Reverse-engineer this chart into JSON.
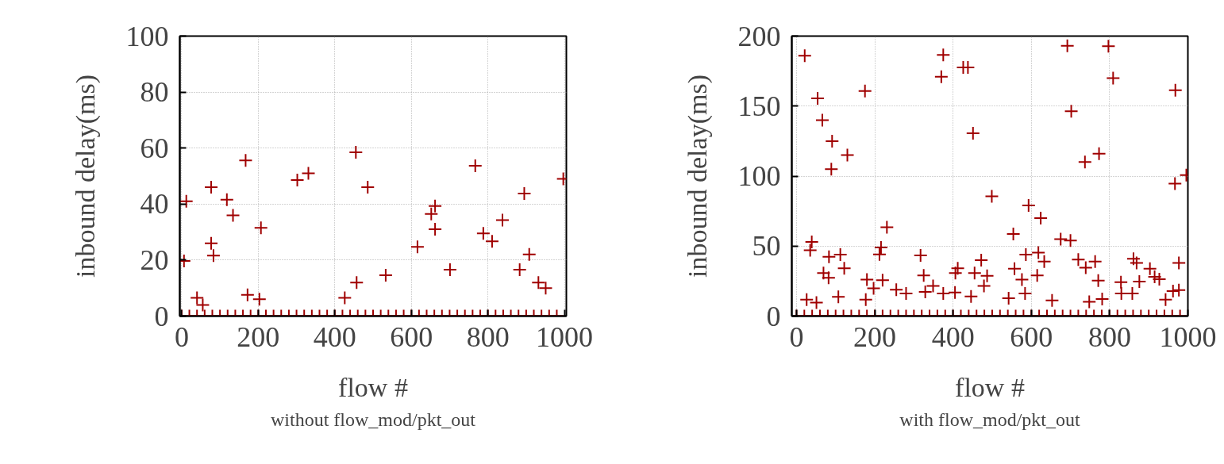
{
  "chart_data": [
    {
      "type": "scatter",
      "xlabel": "flow #",
      "ylabel": "inbound delay(ms)",
      "annotations": [
        "without flow_mod/pkt_out"
      ],
      "xlim": [
        -5,
        1005
      ],
      "ylim": [
        0,
        100
      ],
      "xticks": [
        0,
        200,
        400,
        600,
        800,
        1000
      ],
      "yticks": [
        0,
        20,
        40,
        60,
        80,
        100
      ],
      "grid": true,
      "marker": "cross",
      "series": [
        {
          "color": "#a00000",
          "x": [
            0,
            20,
            40,
            60,
            80,
            100,
            120,
            140,
            160,
            180,
            200,
            220,
            240,
            260,
            280,
            300,
            320,
            340,
            360,
            380,
            400,
            420,
            440,
            460,
            480,
            500,
            520,
            540,
            560,
            580,
            600,
            620,
            640,
            660,
            680,
            700,
            720,
            740,
            760,
            780,
            800,
            820,
            840,
            860,
            880,
            900,
            920,
            940,
            960,
            980,
            6,
            12,
            40,
            55,
            77,
            77,
            83,
            118,
            134,
            167,
            172,
            203,
            207,
            302,
            331,
            426,
            455,
            457,
            486,
            533,
            616,
            652,
            662,
            662,
            701,
            767,
            788,
            811,
            838,
            883,
            895,
            908,
            932,
            951,
            997
          ],
          "values": [
            0,
            0,
            0,
            0,
            0,
            0,
            0,
            0,
            0,
            0,
            0,
            0,
            0,
            0,
            0,
            0,
            0,
            0,
            0,
            0,
            0,
            0,
            0,
            0,
            0,
            0,
            0,
            0,
            0,
            0,
            0,
            0,
            0,
            0,
            0,
            0,
            0,
            0,
            0,
            0,
            0,
            0,
            0,
            0,
            0,
            0,
            0,
            0,
            0,
            0,
            19.7,
            41,
            6.5,
            4,
            46,
            26,
            21.6,
            41.6,
            36,
            55.6,
            7.6,
            6,
            31.5,
            48.6,
            51,
            6.5,
            58.5,
            12,
            46,
            14.6,
            24.7,
            36.5,
            39.3,
            31,
            16.6,
            53.7,
            29.5,
            26.7,
            34.3,
            16.6,
            43.8,
            22,
            12,
            10,
            49
          ]
        }
      ]
    },
    {
      "type": "scatter",
      "xlabel": "flow #",
      "ylabel": "inbound delay(ms)",
      "annotations": [
        "with flow_mod/pkt_out"
      ],
      "xlim": [
        -12,
        1000
      ],
      "ylim": [
        0,
        200
      ],
      "xticks": [
        0,
        200,
        400,
        600,
        800,
        1000
      ],
      "yticks": [
        0,
        50,
        100,
        150,
        200
      ],
      "grid": true,
      "marker": "cross",
      "series": [
        {
          "color": "#a00000",
          "x": [
            0,
            20,
            40,
            60,
            80,
            100,
            120,
            140,
            160,
            180,
            200,
            220,
            240,
            260,
            280,
            300,
            320,
            340,
            360,
            380,
            400,
            420,
            440,
            460,
            480,
            500,
            520,
            540,
            560,
            580,
            600,
            620,
            640,
            660,
            680,
            700,
            720,
            740,
            760,
            780,
            800,
            820,
            840,
            860,
            880,
            900,
            920,
            940,
            960,
            980,
            21,
            54,
            66,
            91,
            130,
            89,
            175,
            370,
            375,
            426,
            438,
            451,
            692,
            797,
            809,
            702,
            737,
            773,
            968,
            996,
            967,
            499,
            593,
            624,
            231,
            554,
            675,
            700,
            39,
            35,
            216,
            212,
            83,
            112,
            317,
            472,
            586,
            618,
            633,
            720,
            763,
            861,
            869,
            977,
            739,
            122,
            69,
            82,
            412,
            406,
            455,
            487,
            557,
            325,
            180,
            220,
            903,
            915,
            927,
            771,
            876,
            829,
            576,
            615,
            479,
            349,
            255,
            280,
            329,
            197,
            107,
            26,
            51,
            177,
            375,
            405,
            446,
            542,
            584,
            653,
            748,
            781,
            830,
            858,
            943,
            962,
            977
          ],
          "values": [
            0,
            0,
            0,
            0,
            0,
            0,
            0,
            0,
            0,
            0,
            0,
            0,
            0,
            0,
            0,
            0,
            0,
            0,
            0,
            0,
            0,
            0,
            0,
            0,
            0,
            0,
            0,
            0,
            0,
            0,
            0,
            0,
            0,
            0,
            0,
            0,
            0,
            0,
            0,
            0,
            0,
            0,
            0,
            0,
            0,
            0,
            0,
            0,
            0,
            0,
            186,
            155.5,
            140,
            125,
            115,
            105,
            160.8,
            171,
            186.6,
            177.6,
            177.6,
            130.6,
            193,
            192.8,
            170,
            146.3,
            110,
            116,
            161.4,
            100.7,
            94.6,
            85.6,
            79,
            70,
            63.5,
            58.7,
            54.9,
            54,
            53,
            47,
            49,
            44,
            42.4,
            43.9,
            43.3,
            40,
            43.9,
            45.3,
            38.9,
            40.3,
            39,
            40.9,
            38,
            38,
            34.6,
            34.2,
            30.7,
            27.3,
            34.2,
            30.7,
            30.7,
            28.8,
            33.9,
            29,
            26,
            25.6,
            33.9,
            28,
            26.3,
            25.4,
            24.6,
            24.2,
            26,
            29,
            21.6,
            21.6,
            18.9,
            16.1,
            17.3,
            19.8,
            13.7,
            11.7,
            9.7,
            11.7,
            16.1,
            16.9,
            14,
            12.8,
            16.1,
            11.2,
            10.2,
            12.2,
            16.1,
            16.1,
            11.7,
            17.9,
            18.5
          ]
        }
      ]
    }
  ]
}
